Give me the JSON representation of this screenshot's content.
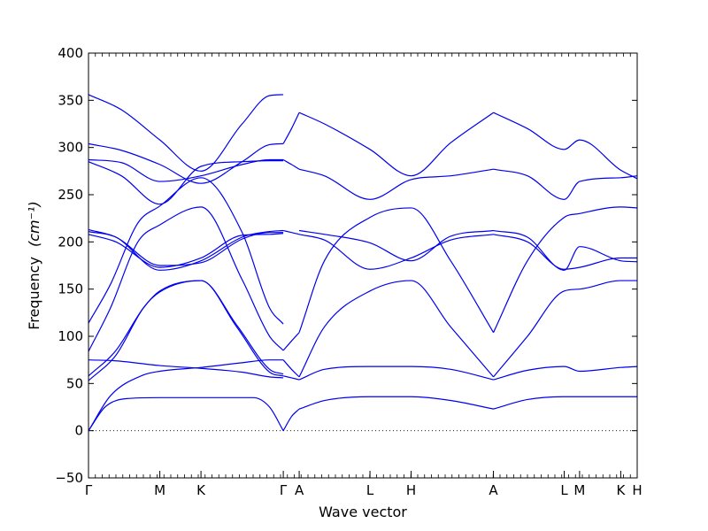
{
  "chart_data": {
    "type": "line",
    "title": "",
    "xlabel": "Wave vector",
    "ylabel": "Frequency",
    "ylabel_unit": "(cm⁻¹)",
    "ylim": [
      -50,
      400
    ],
    "y_ticks": [
      -50,
      0,
      50,
      100,
      150,
      200,
      250,
      300,
      350,
      400
    ],
    "grid": false,
    "legend": "none",
    "line_color": "#0000ee",
    "zero_line": {
      "value": 0,
      "style": "dotted"
    },
    "high_symmetry_points": [
      {
        "label": "Γ",
        "k": 0.0
      },
      {
        "label": "M",
        "k": 0.13
      },
      {
        "label": "K",
        "k": 0.205
      },
      {
        "label": "Γ",
        "k": 0.355
      },
      {
        "label": "A",
        "k": 0.384
      },
      {
        "label": "L",
        "k": 0.513
      },
      {
        "label": "H",
        "k": 0.588
      },
      {
        "label": "A",
        "k": 0.738
      },
      {
        "label": "L",
        "k": 0.867
      },
      {
        "label": "M",
        "k": 0.895
      },
      {
        "label": "K",
        "k": 0.97
      },
      {
        "label": "H",
        "k": 1.0
      }
    ],
    "series": [
      {
        "k": [
          0,
          0.03,
          0.07,
          0.13,
          0.205,
          0.3,
          0.33,
          0.355
        ],
        "values": [
          0,
          25,
          34,
          35,
          35,
          35,
          25,
          0
        ]
      },
      {
        "k": [
          0,
          0.04,
          0.1,
          0.13,
          0.205,
          0.28,
          0.33,
          0.355
        ],
        "values": [
          0,
          37,
          59,
          63,
          67,
          72,
          75,
          75
        ]
      },
      {
        "k": [
          0,
          0.05,
          0.13,
          0.205,
          0.28,
          0.33,
          0.355
        ],
        "values": [
          75,
          74,
          69,
          66,
          62,
          57,
          56
        ]
      },
      {
        "k": [
          0,
          0.05,
          0.1,
          0.13,
          0.205,
          0.27,
          0.33,
          0.355
        ],
        "values": [
          53,
          80,
          130,
          147,
          159,
          110,
          62,
          58
        ]
      },
      {
        "k": [
          0,
          0.05,
          0.1,
          0.13,
          0.205,
          0.27,
          0.33,
          0.355
        ],
        "values": [
          58,
          85,
          130,
          148,
          159,
          112,
          65,
          60
        ]
      },
      {
        "k": [
          0,
          0.04,
          0.09,
          0.13,
          0.205,
          0.28,
          0.33,
          0.355
        ],
        "values": [
          84,
          130,
          200,
          218,
          237,
          160,
          100,
          85
        ]
      },
      {
        "k": [
          0,
          0.04,
          0.09,
          0.13,
          0.205,
          0.28,
          0.33,
          0.355
        ],
        "values": [
          114,
          155,
          220,
          238,
          268,
          210,
          130,
          113
        ]
      },
      {
        "k": [
          0,
          0.05,
          0.13,
          0.205,
          0.28,
          0.33,
          0.355
        ],
        "values": [
          211,
          205,
          170,
          180,
          205,
          211,
          212
        ]
      },
      {
        "k": [
          0,
          0.05,
          0.13,
          0.205,
          0.28,
          0.33,
          0.355
        ],
        "values": [
          208,
          200,
          173,
          183,
          207,
          208,
          209
        ]
      },
      {
        "k": [
          0,
          0.05,
          0.13,
          0.205,
          0.28,
          0.33,
          0.355
        ],
        "values": [
          213,
          205,
          175,
          178,
          203,
          210,
          210
        ]
      },
      {
        "k": [
          0,
          0.06,
          0.13,
          0.205,
          0.28,
          0.33,
          0.355
        ],
        "values": [
          287,
          284,
          264,
          270,
          282,
          287,
          287
        ]
      },
      {
        "k": [
          0,
          0.06,
          0.13,
          0.205,
          0.28,
          0.33,
          0.355
        ],
        "values": [
          285,
          270,
          240,
          280,
          285,
          286,
          286
        ]
      },
      {
        "k": [
          0,
          0.06,
          0.13,
          0.205,
          0.28,
          0.33,
          0.355
        ],
        "values": [
          304,
          297,
          282,
          262,
          285,
          303,
          304
        ]
      },
      {
        "k": [
          0,
          0.06,
          0.13,
          0.205,
          0.28,
          0.33,
          0.355
        ],
        "values": [
          356,
          340,
          308,
          275,
          325,
          355,
          356
        ]
      },
      {
        "k": [
          0.355,
          0.37,
          0.384
        ],
        "values": [
          75,
          65,
          57
        ]
      },
      {
        "k": [
          0.355,
          0.37,
          0.384
        ],
        "values": [
          0,
          15,
          23
        ]
      },
      {
        "k": [
          0.355,
          0.37,
          0.384
        ],
        "values": [
          58,
          56,
          54
        ]
      },
      {
        "k": [
          0.355,
          0.37,
          0.384
        ],
        "values": [
          85,
          95,
          104
        ]
      },
      {
        "k": [
          0.355,
          0.37,
          0.384
        ],
        "values": [
          212,
          210,
          208
        ]
      },
      {
        "k": [
          0.355,
          0.37,
          0.384
        ],
        "values": [
          304,
          320,
          337
        ]
      },
      {
        "k": [
          0.355,
          0.37,
          0.384
        ],
        "values": [
          287,
          282,
          277
        ]
      },
      {
        "k": [
          0.384,
          0.43,
          0.513,
          0.588,
          0.66,
          0.738
        ],
        "values": [
          23,
          32,
          36,
          36,
          32,
          23
        ]
      },
      {
        "k": [
          0.384,
          0.43,
          0.513,
          0.588,
          0.66,
          0.738
        ],
        "values": [
          54,
          65,
          68,
          68,
          65,
          54
        ]
      },
      {
        "k": [
          0.384,
          0.43,
          0.513,
          0.588,
          0.66,
          0.738
        ],
        "values": [
          57,
          110,
          148,
          159,
          110,
          57
        ]
      },
      {
        "k": [
          0.384,
          0.43,
          0.513,
          0.588,
          0.66,
          0.738
        ],
        "values": [
          104,
          180,
          226,
          236,
          180,
          104
        ]
      },
      {
        "k": [
          0.384,
          0.43,
          0.513,
          0.588,
          0.66,
          0.738
        ],
        "values": [
          208,
          202,
          171,
          183,
          202,
          208
        ]
      },
      {
        "k": [
          0.384,
          0.43,
          0.513,
          0.588,
          0.66,
          0.738
        ],
        "values": [
          212,
          208,
          199,
          180,
          206,
          212
        ]
      },
      {
        "k": [
          0.384,
          0.43,
          0.513,
          0.588,
          0.66,
          0.738
        ],
        "values": [
          277,
          270,
          245,
          266,
          270,
          277
        ]
      },
      {
        "k": [
          0.384,
          0.43,
          0.513,
          0.588,
          0.66,
          0.738
        ],
        "values": [
          337,
          325,
          298,
          270,
          305,
          337
        ]
      },
      {
        "k": [
          0.738,
          0.8,
          0.867,
          0.895,
          0.97,
          1.0
        ],
        "values": [
          23,
          33,
          36,
          36,
          36,
          36
        ]
      },
      {
        "k": [
          0.738,
          0.8,
          0.867,
          0.895,
          0.97,
          1.0
        ],
        "values": [
          54,
          64,
          68,
          63,
          67,
          68
        ]
      },
      {
        "k": [
          0.738,
          0.8,
          0.867,
          0.895,
          0.97,
          1.0
        ],
        "values": [
          57,
          100,
          148,
          150,
          159,
          159
        ]
      },
      {
        "k": [
          0.738,
          0.8,
          0.867,
          0.895,
          0.97,
          1.0
        ],
        "values": [
          104,
          180,
          226,
          230,
          237,
          236
        ]
      },
      {
        "k": [
          0.738,
          0.8,
          0.867,
          0.895,
          0.97,
          1.0
        ],
        "values": [
          208,
          200,
          171,
          173,
          183,
          183
        ]
      },
      {
        "k": [
          0.738,
          0.8,
          0.867,
          0.895,
          0.97,
          1.0
        ],
        "values": [
          212,
          205,
          170,
          195,
          180,
          179
        ]
      },
      {
        "k": [
          0.738,
          0.8,
          0.867,
          0.895,
          0.97,
          1.0
        ],
        "values": [
          277,
          270,
          245,
          264,
          268,
          270
        ]
      },
      {
        "k": [
          0.738,
          0.8,
          0.867,
          0.895,
          0.97,
          1.0
        ],
        "values": [
          337,
          320,
          298,
          308,
          276,
          267
        ]
      }
    ]
  }
}
